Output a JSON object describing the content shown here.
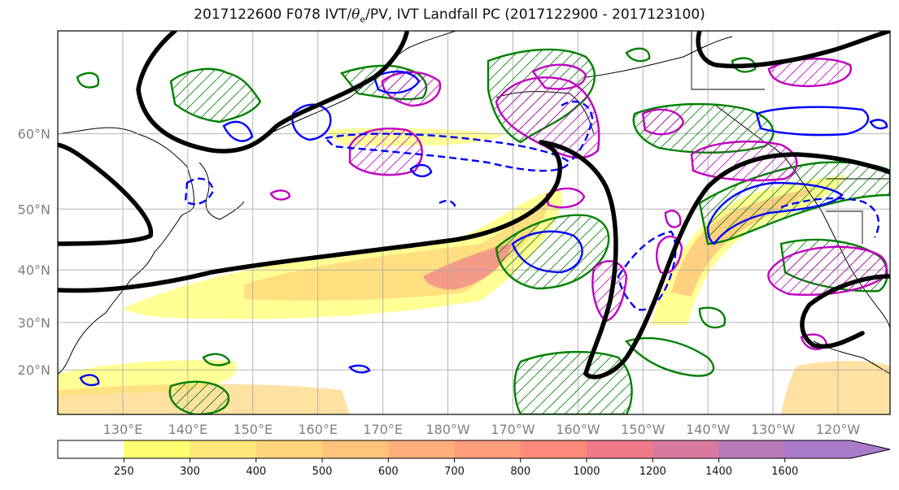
{
  "title": {
    "prefix": "2017122600 F078 IVT/",
    "theta": "θ",
    "theta_sub": "e",
    "suffix": "/PV, IVT Landfall PC (2017122900 - 2017123100)"
  },
  "map": {
    "lat_ticks": [
      {
        "value": 20,
        "label": "20°N"
      },
      {
        "value": 30,
        "label": "30°N"
      },
      {
        "value": 40,
        "label": "40°N"
      },
      {
        "value": 50,
        "label": "50°N"
      },
      {
        "value": 60,
        "label": "60°N"
      }
    ],
    "lon_ticks": [
      {
        "value": 130,
        "label": "130°E"
      },
      {
        "value": 140,
        "label": "140°E"
      },
      {
        "value": 150,
        "label": "150°E"
      },
      {
        "value": 160,
        "label": "160°E"
      },
      {
        "value": 170,
        "label": "170°E"
      },
      {
        "value": 180,
        "label": "180°W"
      },
      {
        "value": 190,
        "label": "170°W"
      },
      {
        "value": 200,
        "label": "160°W"
      },
      {
        "value": 210,
        "label": "150°W"
      },
      {
        "value": 220,
        "label": "140°W"
      },
      {
        "value": 230,
        "label": "130°W"
      },
      {
        "value": 240,
        "label": "120°W"
      }
    ],
    "extent": {
      "lon_min": 120,
      "lon_max": 248,
      "lat_min": 10,
      "lat_max": 70
    },
    "colors": {
      "geopotential": "#000000",
      "pv_positive": "#0000ff",
      "theta_e": "#008000",
      "ivt_pc": "#c000c0",
      "grid": "#a9a9a9",
      "coast": "#000000"
    }
  },
  "colorbar": {
    "levels": [
      "250",
      "300",
      "400",
      "500",
      "600",
      "700",
      "800",
      "1000",
      "1200",
      "1400",
      "1600"
    ],
    "colors": [
      "#ffffff",
      "#ffff70",
      "#ffe87a",
      "#ffd47a",
      "#ffc47a",
      "#ffb07a",
      "#ff9c7a",
      "#ff8a7a",
      "#f07a8a",
      "#d87aa0",
      "#b87ab8",
      "#a87ac8"
    ]
  }
}
